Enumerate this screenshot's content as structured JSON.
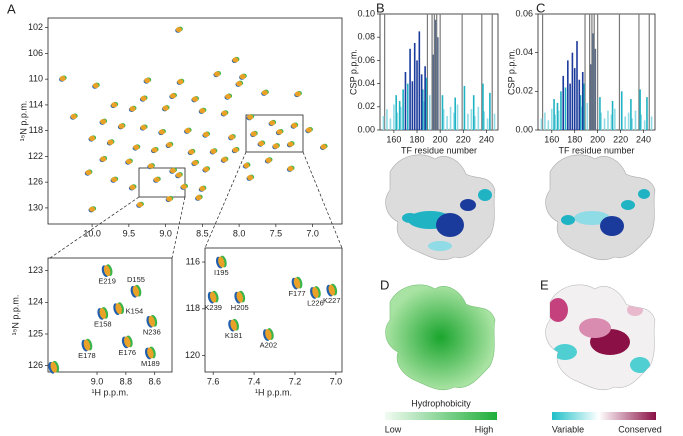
{
  "panel_a": {
    "label": "A",
    "type": "scatter",
    "y_label": "¹⁵N p.p.m.",
    "xlim": [
      10.6,
      6.6
    ],
    "ylim": [
      132.5,
      100.5
    ],
    "xticks": [
      {
        "value": 10.0,
        "label": "10.0"
      },
      9.5,
      {
        "value": 9.0,
        "label": "9.0"
      },
      8.5,
      {
        "value": 8.0,
        "label": "8.0"
      },
      7.5,
      {
        "value": 7.0,
        "label": "7.0"
      }
    ],
    "yticks": [
      102,
      106,
      110,
      114,
      118,
      122,
      126,
      130
    ],
    "peaks": [
      [
        8.82,
        102.3
      ],
      [
        8.05,
        107.0
      ],
      [
        10.4,
        109.9
      ],
      [
        9.25,
        110.2
      ],
      [
        8.8,
        110.4
      ],
      [
        8.3,
        109.2
      ],
      [
        8.0,
        110.7
      ],
      [
        7.95,
        109.6
      ],
      [
        9.95,
        111.0
      ],
      [
        9.3,
        113.0
      ],
      [
        8.9,
        112.6
      ],
      [
        8.6,
        113.1
      ],
      [
        8.15,
        112.7
      ],
      [
        7.65,
        112.1
      ],
      [
        7.2,
        112.3
      ],
      [
        9.7,
        114.0
      ],
      [
        9.45,
        114.6
      ],
      [
        9.0,
        114.5
      ],
      [
        8.5,
        114.9
      ],
      [
        8.2,
        115.3
      ],
      [
        7.85,
        115.9
      ],
      [
        7.55,
        116.8
      ],
      [
        7.25,
        117.2
      ],
      [
        10.25,
        115.8
      ],
      [
        9.85,
        116.6
      ],
      [
        9.6,
        117.3
      ],
      [
        9.3,
        117.5
      ],
      [
        9.05,
        118.2
      ],
      [
        8.7,
        118.0
      ],
      [
        8.45,
        118.6
      ],
      [
        8.1,
        119.0
      ],
      [
        7.8,
        118.5
      ],
      [
        7.45,
        118.2
      ],
      [
        7.3,
        120.1
      ],
      [
        7.05,
        117.9
      ],
      [
        6.85,
        120.5
      ],
      [
        10.0,
        119.2
      ],
      [
        9.75,
        119.8
      ],
      [
        9.4,
        120.6
      ],
      [
        9.15,
        121.0
      ],
      [
        8.95,
        120.2
      ],
      [
        8.65,
        121.3
      ],
      [
        8.35,
        121.2
      ],
      [
        8.05,
        121.0
      ],
      [
        7.7,
        120.0
      ],
      [
        7.5,
        120.4
      ],
      [
        9.85,
        122.4
      ],
      [
        9.5,
        122.8
      ],
      [
        9.2,
        123.5
      ],
      [
        8.9,
        124.2
      ],
      [
        8.82,
        124.9
      ],
      [
        9.12,
        125.6
      ],
      [
        8.6,
        123.0
      ],
      [
        8.45,
        124.0
      ],
      [
        8.2,
        122.5
      ],
      [
        7.9,
        123.4
      ],
      [
        7.6,
        122.6
      ],
      [
        7.3,
        123.9
      ],
      [
        10.05,
        124.5
      ],
      [
        9.7,
        125.6
      ],
      [
        9.45,
        126.8
      ],
      [
        8.75,
        126.7
      ],
      [
        8.5,
        127.0
      ],
      [
        8.95,
        128.6
      ],
      [
        9.35,
        129.5
      ],
      [
        10.0,
        130.2
      ],
      [
        8.55,
        128.4
      ],
      [
        7.85,
        125.3
      ]
    ]
  },
  "inset_left": {
    "x_label": "¹H p.p.m.",
    "y_label": "¹⁵N p.p.m.",
    "xlim": [
      9.34,
      8.48
    ],
    "ylim": [
      126.2,
      122.6
    ],
    "xticks": [
      {
        "value": 9.0,
        "label": "9.0"
      },
      8.8,
      8.6
    ],
    "yticks": [
      123,
      124,
      125,
      126
    ],
    "peaks": [
      {
        "x": 8.93,
        "y": 123.0,
        "label": "E219",
        "anchor": "below"
      },
      {
        "x": 8.73,
        "y": 123.65,
        "label": "D155",
        "anchor": "above"
      },
      {
        "x": 8.85,
        "y": 124.2,
        "label": "K154",
        "anchor": "right"
      },
      {
        "x": 8.96,
        "y": 124.35,
        "label": "E158",
        "anchor": "below"
      },
      {
        "x": 8.62,
        "y": 124.6,
        "label": "N236",
        "anchor": "below"
      },
      {
        "x": 9.07,
        "y": 125.35,
        "label": "E178",
        "anchor": "below"
      },
      {
        "x": 8.79,
        "y": 125.25,
        "label": "E176",
        "anchor": "below"
      },
      {
        "x": 8.63,
        "y": 125.6,
        "label": "M189",
        "anchor": "below"
      },
      {
        "x": 9.3,
        "y": 126.05
      }
    ]
  },
  "inset_right": {
    "x_label": "¹H p.p.m.",
    "xlim": [
      7.64,
      6.97
    ],
    "ylim": [
      120.7,
      115.4
    ],
    "xticks": [
      7.6,
      7.4,
      7.2,
      {
        "value": 7.0,
        "label": "7.0"
      }
    ],
    "yticks": [
      116,
      118,
      120
    ],
    "peaks": [
      {
        "x": 7.56,
        "y": 116.0,
        "label": "I195",
        "anchor": "below"
      },
      {
        "x": 7.6,
        "y": 117.5,
        "label": "K239",
        "anchor": "below"
      },
      {
        "x": 7.47,
        "y": 117.5,
        "label": "H205",
        "anchor": "below"
      },
      {
        "x": 7.5,
        "y": 118.7,
        "label": "K181",
        "anchor": "below"
      },
      {
        "x": 7.33,
        "y": 119.1,
        "label": "A202",
        "anchor": "below"
      },
      {
        "x": 7.19,
        "y": 116.9,
        "label": "F177",
        "anchor": "below"
      },
      {
        "x": 7.1,
        "y": 117.3,
        "label": "L226",
        "anchor": "below"
      },
      {
        "x": 7.02,
        "y": 117.2,
        "label": "K227",
        "anchor": "below"
      }
    ]
  },
  "panel_b": {
    "label": "B",
    "type": "bar",
    "y_label": "CSP p.p.m.",
    "x_label": "TF residue number",
    "xlim": [
      148,
      250
    ],
    "ylim": [
      0,
      0.1
    ],
    "xticks": [
      160,
      180,
      200,
      220,
      240
    ],
    "yticks": [
      {
        "value": 0,
        "label": "0.00"
      },
      0.02,
      0.04,
      0.06,
      0.08,
      {
        "value": 0.1,
        "label": "0.10"
      }
    ],
    "broadened": [
      152,
      189,
      193,
      195,
      197,
      200,
      219,
      236,
      245
    ],
    "series": [
      {
        "color": "#8fdbe6",
        "x": [
          151,
          154,
          157,
          160,
          163,
          166,
          186,
          191,
          203,
          206,
          209,
          212,
          215,
          224,
          227,
          230,
          233,
          238,
          241,
          247
        ],
        "values": [
          0.012,
          0.018,
          0.01,
          0.022,
          0.015,
          0.02,
          0.025,
          0.03,
          0.018,
          0.012,
          0.02,
          0.015,
          0.022,
          0.014,
          0.018,
          0.012,
          0.02,
          0.016,
          0.01,
          0.014
        ]
      },
      {
        "color": "#1fb3c3",
        "x": [
          162,
          165,
          168,
          172,
          185,
          188,
          202,
          213,
          221,
          229,
          237,
          243
        ],
        "values": [
          0.03,
          0.025,
          0.035,
          0.04,
          0.035,
          0.045,
          0.03,
          0.028,
          0.038,
          0.03,
          0.04,
          0.032
        ]
      },
      {
        "color": "#1b3b9c",
        "x": [
          170,
          174,
          176,
          178,
          180,
          182,
          184,
          187
        ],
        "values": [
          0.05,
          0.07,
          0.042,
          0.075,
          0.06,
          0.085,
          0.048,
          0.055
        ]
      },
      {
        "color": "#5a6c88",
        "x": [
          194,
          196,
          198
        ],
        "values": [
          0.065,
          0.095,
          0.08
        ]
      }
    ]
  },
  "panel_c": {
    "label": "C",
    "type": "bar",
    "y_label": "CSP p.p.m.",
    "x_label": "TF residue number",
    "xlim": [
      148,
      250
    ],
    "ylim": [
      0,
      0.06
    ],
    "xticks": [
      160,
      180,
      200,
      220,
      240
    ],
    "yticks": [
      {
        "value": 0,
        "label": "0.00"
      },
      0.02,
      0.04,
      0.06
    ],
    "broadened": [
      152,
      189,
      193,
      195,
      197,
      200,
      219,
      236,
      245
    ],
    "series": [
      {
        "color": "#8fdbe6",
        "x": [
          151,
          154,
          157,
          160,
          163,
          166,
          186,
          191,
          203,
          206,
          209,
          212,
          215,
          224,
          227,
          230,
          233,
          238,
          241,
          247
        ],
        "values": [
          0.006,
          0.009,
          0.005,
          0.011,
          0.008,
          0.01,
          0.012,
          0.014,
          0.009,
          0.006,
          0.01,
          0.008,
          0.011,
          0.007,
          0.009,
          0.006,
          0.01,
          0.008,
          0.005,
          0.007
        ]
      },
      {
        "color": "#1fb3c3",
        "x": [
          162,
          165,
          168,
          172,
          185,
          188,
          202,
          213,
          221,
          229,
          237,
          243
        ],
        "values": [
          0.016,
          0.014,
          0.02,
          0.022,
          0.018,
          0.024,
          0.017,
          0.015,
          0.02,
          0.016,
          0.021,
          0.017
        ]
      },
      {
        "color": "#1b3b9c",
        "x": [
          170,
          174,
          176,
          178,
          180,
          182,
          184,
          187
        ],
        "values": [
          0.028,
          0.036,
          0.024,
          0.04,
          0.032,
          0.046,
          0.026,
          0.03
        ]
      },
      {
        "color": "#5a6c88",
        "x": [
          194,
          196,
          198
        ],
        "values": [
          0.034,
          0.05,
          0.042
        ]
      }
    ]
  },
  "panel_d": {
    "label": "D",
    "scale_title": "Hydrophobicity",
    "low": "Low",
    "high": "High"
  },
  "panel_e": {
    "label": "E",
    "low": "Variable",
    "high": "Conserved"
  }
}
